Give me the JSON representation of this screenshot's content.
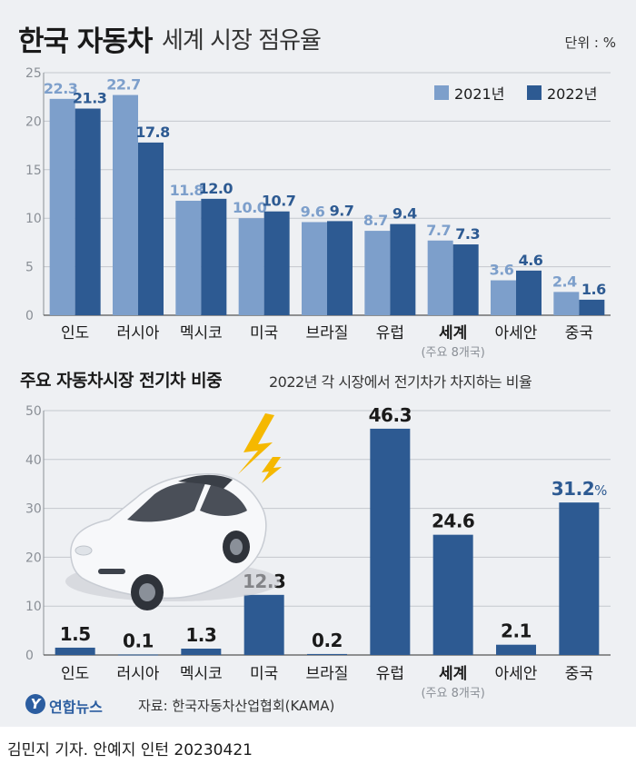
{
  "header": {
    "title_main": "한국 자동차",
    "title_sub": "세계 시장 점유율",
    "unit": "단위 : %"
  },
  "section2": {
    "title": "주요 자동차시장 전기차 비중",
    "subtitle": "2022년 각 시장에서 전기차가 차지하는 비율"
  },
  "footer": {
    "logo_mark": "Y",
    "agency": "연합뉴스",
    "source": "자료: 한국자동차산업협회(KAMA)",
    "byline": "김민지 기자. 안예지 인턴  20230421"
  },
  "colors": {
    "light_blue": "#7d9fcb",
    "dark_blue": "#2d5a92",
    "panel_bg": "#eef0f3"
  },
  "chart_data": [
    {
      "type": "bar",
      "title": "한국 자동차 세계 시장 점유율",
      "ylabel": "%",
      "ylim": [
        0,
        25
      ],
      "yticks": [
        0,
        5,
        10,
        15,
        20,
        25
      ],
      "categories": [
        "인도",
        "러시아",
        "멕시코",
        "미국",
        "브라질",
        "유럽",
        "세계",
        "아세안",
        "중국"
      ],
      "category_note": "(주요 8개국)",
      "highlight_category": "세계",
      "series": [
        {
          "name": "2021년",
          "values": [
            22.3,
            22.7,
            11.8,
            10.0,
            9.6,
            8.7,
            7.7,
            3.6,
            2.4
          ],
          "labels": [
            "22.3",
            "22.7",
            "11.8",
            "10.0",
            "9.6",
            "8.7",
            "7.7",
            "3.6",
            "2.4"
          ]
        },
        {
          "name": "2022년",
          "values": [
            21.3,
            17.8,
            12.0,
            10.7,
            9.7,
            9.4,
            7.3,
            4.6,
            1.6
          ],
          "labels": [
            "21.3",
            "17.8",
            "12.0",
            "10.7",
            "9.7",
            "9.4",
            "7.3",
            "4.6",
            "1.6"
          ]
        }
      ],
      "legend": "top-right"
    },
    {
      "type": "bar",
      "title": "주요 자동차시장 전기차 비중",
      "subtitle": "2022년 각 시장에서 전기차가 차지하는 비율",
      "ylim": [
        0,
        50
      ],
      "yticks": [
        0,
        10,
        20,
        30,
        40,
        50
      ],
      "categories": [
        "인도",
        "러시아",
        "멕시코",
        "미국",
        "브라질",
        "유럽",
        "세계",
        "아세안",
        "중국"
      ],
      "category_note": "(주요 8개국)",
      "highlight_category": "세계",
      "values": [
        1.5,
        0.1,
        1.3,
        12.3,
        0.2,
        46.3,
        24.6,
        2.1,
        31.2
      ],
      "labels": [
        "1.5",
        "0.1",
        "1.3",
        "12.3",
        "0.2",
        "46.3",
        "24.6",
        "2.1",
        "31.2"
      ],
      "last_label_unit": "%"
    }
  ]
}
